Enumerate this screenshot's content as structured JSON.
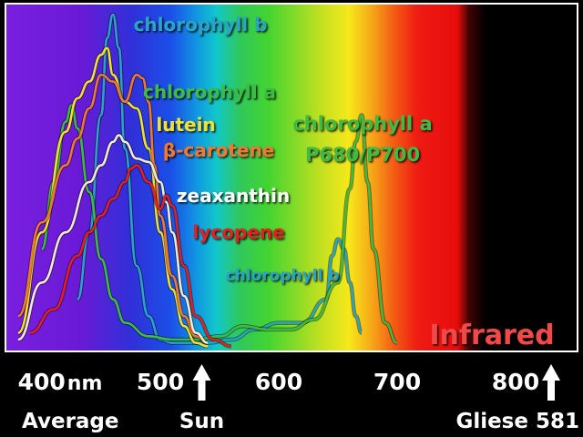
{
  "chart_data": {
    "type": "line",
    "title": "",
    "xlabel": "",
    "ylabel": "",
    "x_unit": "nm",
    "xlim": [
      380,
      850
    ],
    "x_ticks": [
      {
        "value": 400,
        "label": "400",
        "unit": "nm"
      },
      {
        "value": 500,
        "label": "500"
      },
      {
        "value": 600,
        "label": "600"
      },
      {
        "value": 700,
        "label": "700"
      },
      {
        "value": 800,
        "label": "800"
      }
    ],
    "markers": [
      {
        "name": "Average",
        "x": 400,
        "arrow": false
      },
      {
        "name": "Sun",
        "x": 535,
        "arrow": true
      },
      {
        "name": "Gliese 581",
        "x": 830,
        "arrow": true
      }
    ],
    "region_label": "Infrared",
    "series": [
      {
        "name": "chlorophyll b",
        "color": "#2aa3c8",
        "x": [
          430,
          440,
          450,
          455,
          460,
          465,
          470,
          480,
          490,
          500,
          510,
          520,
          540,
          560,
          580,
          600,
          620,
          640,
          645,
          650,
          655,
          660,
          665,
          670
        ],
        "y": [
          0.15,
          0.35,
          0.7,
          0.93,
          1.0,
          0.9,
          0.6,
          0.25,
          0.1,
          0.03,
          0.02,
          0.02,
          0.02,
          0.03,
          0.06,
          0.08,
          0.08,
          0.15,
          0.28,
          0.33,
          0.3,
          0.2,
          0.1,
          0.05
        ]
      },
      {
        "name": "chlorophyll a",
        "color": "#3dbb45",
        "x": [
          400,
          410,
          420,
          425,
          430,
          440,
          450,
          460,
          470,
          490,
          510,
          530,
          550,
          570,
          590,
          610,
          630,
          650,
          660,
          665,
          670,
          675,
          680,
          690,
          700
        ],
        "y": [
          0.3,
          0.5,
          0.68,
          0.73,
          0.66,
          0.47,
          0.27,
          0.15,
          0.08,
          0.04,
          0.03,
          0.03,
          0.04,
          0.07,
          0.06,
          0.06,
          0.09,
          0.2,
          0.48,
          0.62,
          0.7,
          0.5,
          0.3,
          0.08,
          0.02
        ]
      },
      {
        "name": "lutein",
        "color": "#f0e130",
        "x": [
          380,
          400,
          420,
          430,
          440,
          450,
          455,
          460,
          470,
          480,
          490,
          500,
          510,
          520,
          530,
          540
        ],
        "y": [
          0.05,
          0.35,
          0.65,
          0.75,
          0.8,
          0.88,
          0.9,
          0.82,
          0.74,
          0.72,
          0.6,
          0.35,
          0.18,
          0.07,
          0.02,
          0.01
        ]
      },
      {
        "name": "β-carotene",
        "color": "#f07830",
        "x": [
          380,
          400,
          420,
          430,
          440,
          450,
          460,
          470,
          480,
          485,
          490,
          495,
          500,
          510,
          520,
          530,
          540
        ],
        "y": [
          0.1,
          0.38,
          0.55,
          0.63,
          0.72,
          0.82,
          0.8,
          0.74,
          0.82,
          0.81,
          0.74,
          0.55,
          0.4,
          0.22,
          0.1,
          0.04,
          0.02
        ]
      },
      {
        "name": "zeaxanthin",
        "color": "#f0ead0",
        "x": [
          380,
          400,
          420,
          440,
          450,
          460,
          465,
          470,
          480,
          490,
          500,
          505,
          510,
          520,
          530,
          540
        ],
        "y": [
          0.03,
          0.2,
          0.35,
          0.5,
          0.55,
          0.62,
          0.64,
          0.62,
          0.57,
          0.56,
          0.5,
          0.44,
          0.35,
          0.16,
          0.05,
          0.02
        ]
      },
      {
        "name": "lycopene",
        "color": "#e02020",
        "x": [
          390,
          410,
          430,
          440,
          450,
          460,
          470,
          475,
          480,
          490,
          500,
          505,
          510,
          520,
          530,
          545,
          560
        ],
        "y": [
          0.05,
          0.12,
          0.28,
          0.35,
          0.4,
          0.45,
          0.5,
          0.54,
          0.55,
          0.5,
          0.42,
          0.46,
          0.43,
          0.25,
          0.1,
          0.03,
          0.01
        ]
      }
    ],
    "series_label_lines": {
      "chlorophyll b": [
        "chlorophyll b"
      ],
      "chlorophyll a": [
        "chlorophyll a"
      ],
      "lutein": [
        "lutein"
      ],
      "β-carotene": [
        "β-carotene"
      ],
      "zeaxanthin": [
        "zeaxanthin"
      ],
      "lycopene": [
        "lycopene"
      ],
      "chlorophyll b (red band)": [
        "chlorophyll b"
      ],
      "chlorophyll a P680/P700": [
        "chlorophyll a",
        "P680/P700"
      ]
    },
    "grid": false,
    "legend": "inline labels on curves"
  }
}
